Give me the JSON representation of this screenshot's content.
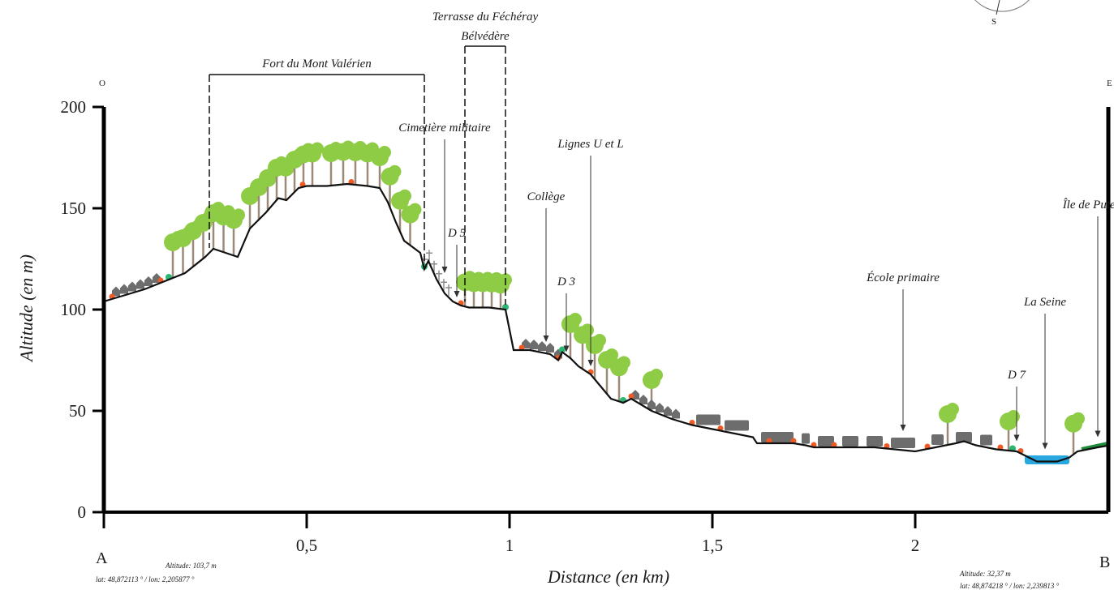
{
  "chart_data": {
    "type": "area",
    "xlabel": "Distance (en km)",
    "ylabel": "Altitude (en m)",
    "xlim": [
      0,
      2.48
    ],
    "ylim": [
      0,
      200
    ],
    "x_ticks": [
      {
        "value": 0.5,
        "label": "0,5"
      },
      {
        "value": 1,
        "label": "1"
      },
      {
        "value": 1.5,
        "label": "1,5"
      },
      {
        "value": 2,
        "label": "2"
      }
    ],
    "y_ticks": [
      {
        "value": 0,
        "label": "0"
      },
      {
        "value": 50,
        "label": "50"
      },
      {
        "value": 100,
        "label": "100"
      },
      {
        "value": 150,
        "label": "150"
      },
      {
        "value": 200,
        "label": "200"
      }
    ],
    "series": [
      {
        "x": [
          0,
          0.1,
          0.2,
          0.25,
          0.27,
          0.3,
          0.33,
          0.36,
          0.4,
          0.43,
          0.45,
          0.48,
          0.5,
          0.55,
          0.6,
          0.65,
          0.68,
          0.7,
          0.72,
          0.74,
          0.76,
          0.78,
          0.79,
          0.8,
          0.82,
          0.84,
          0.86,
          0.88,
          0.9,
          0.95,
          0.99,
          1.0,
          1.01,
          1.05,
          1.1,
          1.12,
          1.13,
          1.15,
          1.17,
          1.2,
          1.25,
          1.28,
          1.3,
          1.35,
          1.4,
          1.45,
          1.5,
          1.55,
          1.6,
          1.61,
          1.7,
          1.73,
          1.75,
          1.8,
          1.9,
          1.95,
          2.0,
          2.05,
          2.1,
          2.12,
          2.15,
          2.2,
          2.25,
          2.28,
          2.3,
          2.35,
          2.38,
          2.4,
          2.45,
          2.48
        ],
        "y": [
          104,
          110,
          118,
          126,
          130,
          128,
          126,
          140,
          148,
          155,
          154,
          160,
          161,
          161,
          162,
          161,
          160,
          153,
          143,
          134,
          131,
          128,
          120,
          124,
          115,
          108,
          104,
          102,
          101,
          101,
          100,
          90,
          80,
          80,
          78,
          75,
          79,
          76,
          72,
          68,
          56,
          54,
          56,
          50,
          46,
          43,
          41,
          39,
          37,
          34,
          34,
          33,
          32,
          32,
          32,
          31,
          30,
          32,
          34,
          35,
          33,
          31,
          30,
          27,
          25,
          25,
          27,
          30,
          32,
          33
        ]
      }
    ],
    "endpoints": {
      "start": {
        "letter": "A",
        "altitude": "Altitude: 103,7 m",
        "coords": "lat: 48,872113 ° / lon: 2,205877 °",
        "direction": "O"
      },
      "end": {
        "letter": "B",
        "altitude": "Altitude: 32,37 m",
        "coords": "lat: 48,874218 ° / lon: 2,239813 °",
        "direction": "E"
      }
    },
    "compass_label": "S",
    "brackets": [
      {
        "label": "Fort du Mont Valérien",
        "x_start": 0.26,
        "x_end": 0.79,
        "y_top": 216
      },
      {
        "label_lines": [
          "Terrasse du Féchéray",
          "Bélvédère"
        ],
        "x_start": 0.89,
        "x_end": 0.99,
        "y_top": 230
      }
    ],
    "annotations": [
      {
        "label": "Cimetière militaire",
        "x": 0.84,
        "y_label": 188,
        "y_tip": 118
      },
      {
        "label": "D 5",
        "x": 0.87,
        "y_label": 136,
        "y_tip": 106
      },
      {
        "label": "Collège",
        "x": 1.09,
        "y_label": 154,
        "y_tip": 84
      },
      {
        "label": "D 3",
        "x": 1.14,
        "y_label": 112,
        "y_tip": 79
      },
      {
        "label": "Lignes U et L",
        "x": 1.2,
        "y_label": 180,
        "y_tip": 72
      },
      {
        "label": "École primaire",
        "x": 1.97,
        "y_label": 114,
        "y_tip": 40
      },
      {
        "label": "La Seine",
        "x": 2.32,
        "y_label": 102,
        "y_tip": 31
      },
      {
        "label": "D 7",
        "x": 2.25,
        "y_label": 66,
        "y_tip": 35
      },
      {
        "label": "Île de Puteaux",
        "x": 2.45,
        "y_label": 150,
        "y_tip": 37
      }
    ],
    "colors": {
      "tree_foliage": "#8fcc45",
      "tree_trunk": "#9b8a7a",
      "building": "#6d6d6d",
      "river": "#29a8e0",
      "marker_orange": "#f05a24",
      "marker_green": "#2bb673",
      "bank_green": "#1e8c3a",
      "line": "#111111"
    }
  }
}
